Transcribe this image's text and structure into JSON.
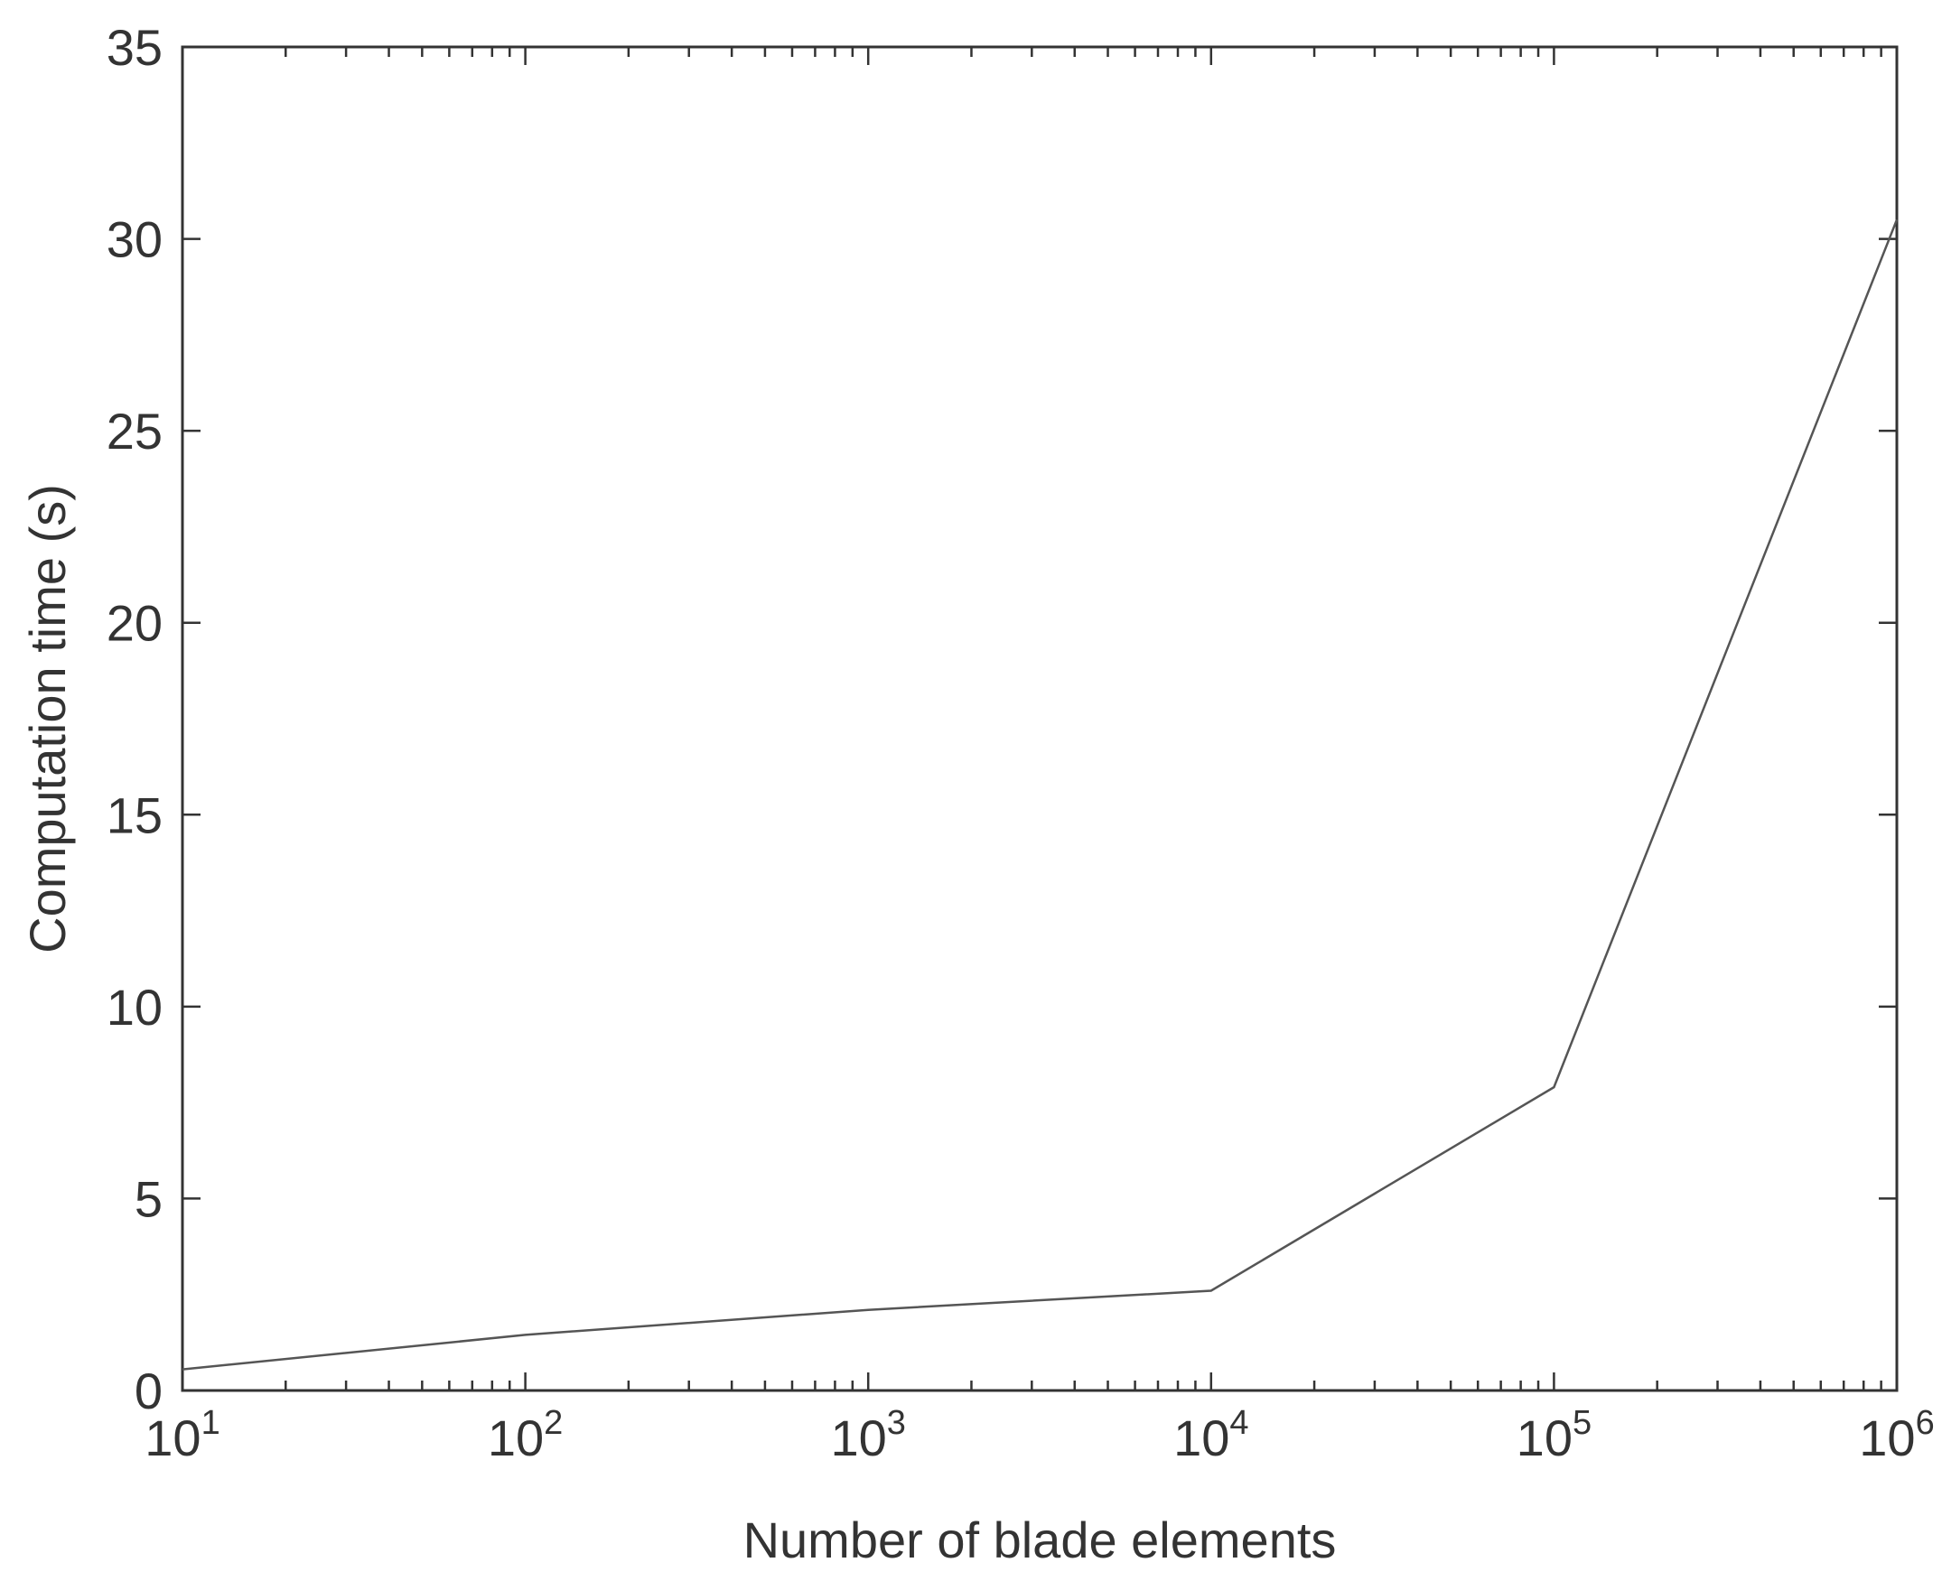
{
  "chart_data": {
    "type": "line",
    "title": "",
    "xlabel": "Number of blade elements",
    "ylabel": "Computation time (s)",
    "xscale": "log",
    "xlim": [
      10,
      1000000
    ],
    "ylim": [
      0,
      35
    ],
    "x_ticks": [
      {
        "base": "10",
        "exp": "1",
        "value": 10
      },
      {
        "base": "10",
        "exp": "2",
        "value": 100
      },
      {
        "base": "10",
        "exp": "3",
        "value": 1000
      },
      {
        "base": "10",
        "exp": "4",
        "value": 10000
      },
      {
        "base": "10",
        "exp": "5",
        "value": 100000
      },
      {
        "base": "10",
        "exp": "6",
        "value": 1000000
      }
    ],
    "y_ticks": [
      "0",
      "5",
      "10",
      "15",
      "20",
      "25",
      "30",
      "35"
    ],
    "series": [
      {
        "x": [
          10,
          100,
          1000,
          10000,
          100000,
          1000000
        ],
        "y": [
          0.55,
          1.45,
          2.1,
          2.6,
          7.9,
          30.5
        ]
      }
    ],
    "grid": false,
    "line_color": "#555555",
    "axis_color": "#333333"
  }
}
